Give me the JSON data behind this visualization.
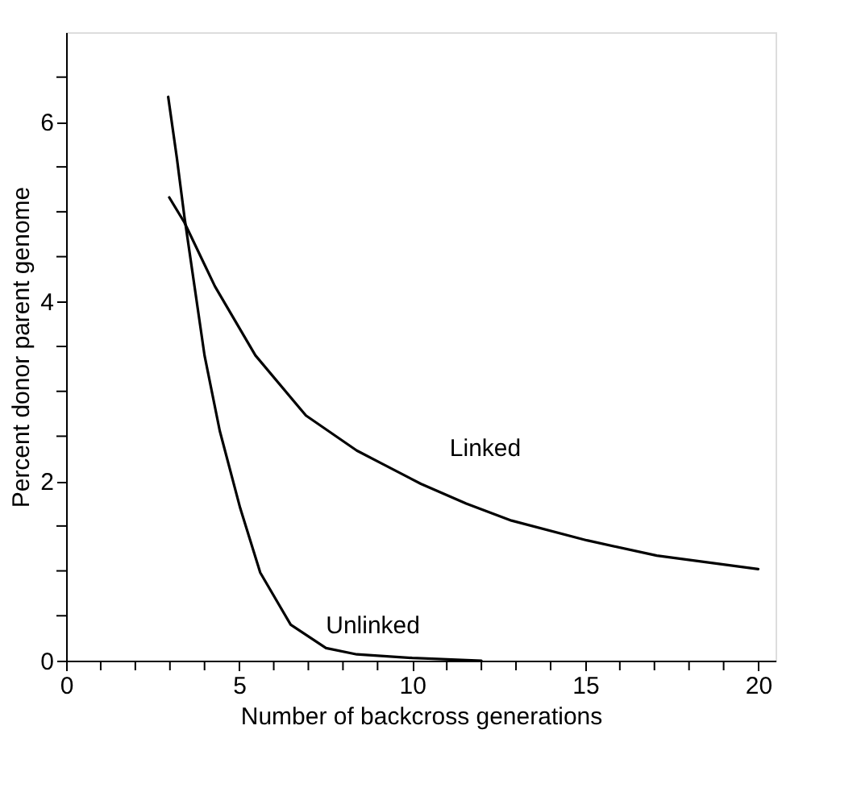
{
  "chart_data": {
    "type": "line",
    "xlabel": "Number of backcross generations",
    "ylabel": "Percent donor parent genome",
    "xlim": [
      0,
      20.5
    ],
    "ylim": [
      0,
      7
    ],
    "xticks": [
      0,
      {
        "value": 1,
        "label": null
      },
      {
        "value": 2,
        "label": null
      },
      {
        "value": 3,
        "label": null
      },
      {
        "value": 4,
        "label": null
      },
      5,
      {
        "value": 6,
        "label": null
      },
      {
        "value": 7,
        "label": null
      },
      {
        "value": 8,
        "label": null
      },
      {
        "value": 9,
        "label": null
      },
      10,
      {
        "value": 11,
        "label": null
      },
      {
        "value": 12,
        "label": null
      },
      {
        "value": 13,
        "label": null
      },
      {
        "value": 14,
        "label": null
      },
      15,
      {
        "value": 16,
        "label": null
      },
      {
        "value": 17,
        "label": null
      },
      {
        "value": 18,
        "label": null
      },
      {
        "value": 19,
        "label": null
      },
      20
    ],
    "yticks": [
      0,
      {
        "value": 0.5,
        "label": null
      },
      {
        "value": 1,
        "label": null
      },
      {
        "value": 1.5,
        "label": null
      },
      2,
      {
        "value": 2.5,
        "label": null
      },
      {
        "value": 3,
        "label": null
      },
      {
        "value": 3.5,
        "label": null
      },
      4,
      {
        "value": 4.5,
        "label": null
      },
      {
        "value": 5,
        "label": null
      },
      {
        "value": 5.5,
        "label": null
      },
      6,
      {
        "value": 6.5,
        "label": null
      }
    ],
    "grid": false,
    "marker": "none",
    "line_style": "solid",
    "series": [
      {
        "name": "Linked",
        "color": "#000000",
        "x": [
          2.98,
          3.42,
          4.3,
          5.47,
          6.93,
          8.4,
          9.1,
          10.25,
          11.56,
          12.87,
          15.05,
          17.07,
          20
        ],
        "values": [
          5.16,
          4.88,
          4.17,
          3.4,
          2.73,
          2.34,
          2.2,
          1.97,
          1.75,
          1.56,
          1.34,
          1.17,
          1.02
        ]
      },
      {
        "name": "Unlinked",
        "color": "#000000",
        "x": [
          2.95,
          3.2,
          3.42,
          3.71,
          4.0,
          4.44,
          5.03,
          5.61,
          6.49,
          7.51,
          8.4,
          10.0,
          12.0
        ],
        "values": [
          6.28,
          5.6,
          4.94,
          4.17,
          3.4,
          2.56,
          1.7,
          0.98,
          0.4,
          0.14,
          0.07,
          0.03,
          0
        ]
      }
    ]
  }
}
